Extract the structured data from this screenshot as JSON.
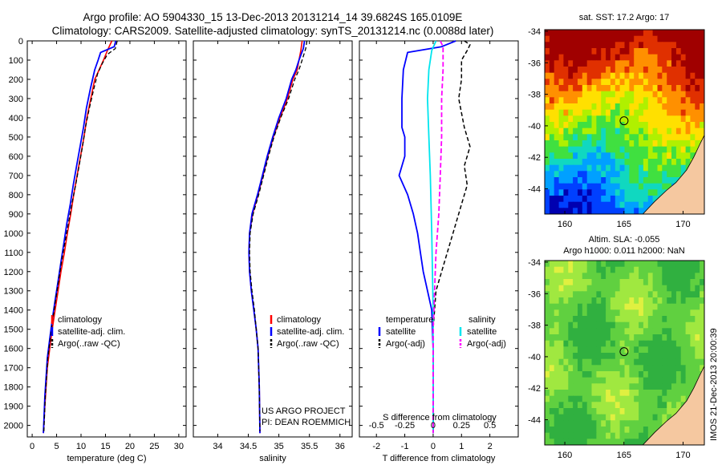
{
  "title": {
    "line1": "Argo profile: AO 5904330_15 13-Dec-2013 20131214_14 39.6824S 165.0109E",
    "line2": "Climatology: CARS2009. Satellite-adjusted climatology: synTS_20131214.nc (0.0088d later)"
  },
  "depth_ticks": [
    "0",
    "100",
    "200",
    "300",
    "400",
    "500",
    "600",
    "700",
    "800",
    "900",
    "1000",
    "1100",
    "1200",
    "1300",
    "1400",
    "1500",
    "1600",
    "1700",
    "1800",
    "1900",
    "2000"
  ],
  "chart_data": [
    {
      "type": "line",
      "id": "temperature",
      "xlabel": "temperature (deg C)",
      "xlim": [
        -1,
        31.5
      ],
      "ylim": [
        2060,
        0
      ],
      "xticks": [
        "0",
        "5",
        "10",
        "15",
        "20",
        "25",
        "30"
      ],
      "legend": [
        "climatology",
        "satellite-adj. clim.",
        "Argo(..raw -QC)"
      ],
      "series": [
        {
          "name": "climatology",
          "color": "#ff0000",
          "dash": "",
          "width": 1.6,
          "x": [
            16.3,
            15.4,
            14.6,
            13.7,
            12.8,
            12.0,
            11.2,
            10.6,
            9.9,
            9.2,
            8.5,
            7.9,
            7.2,
            6.6,
            5.9,
            5.3,
            4.7,
            4.1,
            3.6,
            3.1,
            2.6,
            2.3
          ],
          "y": [
            0,
            50,
            100,
            150,
            200,
            300,
            400,
            500,
            600,
            700,
            800,
            900,
            1000,
            1100,
            1200,
            1300,
            1400,
            1500,
            1600,
            1700,
            1900,
            2040
          ]
        },
        {
          "name": "satellite-adj. clim.",
          "color": "#0000ff",
          "dash": "",
          "width": 1.8,
          "x": [
            17.1,
            16.8,
            14.0,
            13.5,
            12.8,
            11.9,
            11.1,
            10.5,
            9.8,
            9.1,
            8.4,
            7.8,
            7.1,
            6.5,
            5.9,
            5.3,
            4.7,
            4.1,
            3.6,
            3.1,
            2.6,
            2.3
          ],
          "y": [
            0,
            30,
            60,
            100,
            150,
            250,
            350,
            450,
            550,
            650,
            750,
            850,
            950,
            1050,
            1150,
            1250,
            1350,
            1450,
            1550,
            1650,
            1850,
            2040
          ]
        },
        {
          "name": "Argo(..raw -QC)",
          "color": "#000000",
          "dash": "5,3",
          "width": 1.3,
          "x": [
            17.4,
            17.0,
            15.4,
            14.3,
            13.4,
            12.6,
            11.7,
            10.9,
            10.3,
            9.6,
            8.9,
            8.1,
            7.4,
            6.7,
            6.0,
            5.4,
            4.8,
            4.2,
            3.7,
            3.2,
            2.7,
            2.4
          ],
          "y": [
            0,
            40,
            70,
            120,
            170,
            250,
            350,
            450,
            550,
            650,
            750,
            850,
            950,
            1050,
            1150,
            1250,
            1350,
            1450,
            1550,
            1650,
            1850,
            2030
          ]
        }
      ]
    },
    {
      "type": "line",
      "id": "salinity",
      "xlabel": "salinity",
      "xlim": [
        33.6,
        36.2
      ],
      "ylim": [
        2060,
        0
      ],
      "xticks": [
        "34",
        "34.5",
        "35",
        "35.5",
        "36"
      ],
      "legend": [
        "climatology",
        "satellite-adj. clim.",
        "Argo(..raw -QC)"
      ],
      "annotation": [
        "US ARGO PROJECT",
        "PI: DEAN ROEMMICH"
      ],
      "series": [
        {
          "name": "climatology",
          "color": "#ff0000",
          "dash": "",
          "width": 1.6,
          "x": [
            35.38,
            35.36,
            35.33,
            35.3,
            35.23,
            35.14,
            35.02,
            34.91,
            34.82,
            34.74,
            34.66,
            34.57,
            34.52,
            34.51,
            34.52,
            34.55,
            34.59,
            34.63,
            34.66,
            34.68,
            34.69
          ],
          "y": [
            0,
            50,
            100,
            150,
            200,
            300,
            400,
            500,
            600,
            700,
            800,
            900,
            1000,
            1100,
            1200,
            1300,
            1400,
            1500,
            1600,
            1800,
            2040
          ]
        },
        {
          "name": "satellite-adj. clim.",
          "color": "#0000ff",
          "dash": "",
          "width": 1.8,
          "x": [
            35.42,
            35.4,
            35.33,
            35.28,
            35.21,
            35.12,
            35.0,
            34.9,
            34.81,
            34.73,
            34.65,
            34.56,
            34.52,
            34.51,
            34.52,
            34.55,
            34.59,
            34.63,
            34.66,
            34.68,
            34.69
          ],
          "y": [
            0,
            40,
            100,
            150,
            200,
            300,
            400,
            500,
            600,
            700,
            800,
            900,
            1000,
            1100,
            1200,
            1300,
            1400,
            1500,
            1600,
            1800,
            2040
          ]
        },
        {
          "name": "Argo(..raw -QC)",
          "color": "#000000",
          "dash": "5,3",
          "width": 1.3,
          "x": [
            35.46,
            35.44,
            35.38,
            35.33,
            35.26,
            35.16,
            35.03,
            34.92,
            34.83,
            34.75,
            34.67,
            34.58,
            34.53,
            34.52,
            34.53,
            34.56,
            34.6,
            34.63,
            34.66,
            34.68,
            34.69
          ],
          "y": [
            0,
            40,
            100,
            150,
            200,
            300,
            400,
            500,
            600,
            700,
            800,
            900,
            1000,
            1100,
            1200,
            1300,
            1400,
            1500,
            1600,
            1800,
            2030
          ]
        }
      ]
    },
    {
      "type": "line",
      "id": "difference",
      "xlabel": "T difference from climatology",
      "xlabel_top": "S difference from climatology",
      "xlim": [
        -2.6,
        3.0
      ],
      "ylim": [
        2060,
        0
      ],
      "xticks": [
        "-2",
        "-1",
        "0",
        "1",
        "2"
      ],
      "xticks_top": [
        "-0.5",
        "-0.25",
        "0",
        "0.25",
        "0.5"
      ],
      "legend_titles": [
        "temperature",
        "salinity"
      ],
      "legend_temperature": [
        "satellite",
        "Argo(-adj)"
      ],
      "legend_salinity": [
        "satellite",
        "Argo(-adj)"
      ],
      "series": [
        {
          "name": "T satellite",
          "color": "#0000ff",
          "dash": "",
          "width": 1.8,
          "x": [
            0.8,
            0.3,
            -0.9,
            -1.05,
            -1.1,
            -1.1,
            -1.0,
            -1.0,
            -1.2,
            -0.9,
            -0.7,
            -0.55,
            -0.45,
            -0.35,
            -0.2,
            -0.05,
            0.0,
            0.0,
            0.0
          ],
          "y": [
            0,
            30,
            60,
            150,
            300,
            450,
            500,
            600,
            700,
            800,
            900,
            1000,
            1100,
            1200,
            1300,
            1400,
            1600,
            1800,
            2040
          ]
        },
        {
          "name": "T Argo(-adj)",
          "color": "#000000",
          "dash": "5,3",
          "width": 1.5,
          "x": [
            1.1,
            1.3,
            1.2,
            1.0,
            1.0,
            0.9,
            1.1,
            1.3,
            1.1,
            1.2,
            1.0,
            0.7,
            0.5,
            0.3,
            0.1,
            0.05,
            0.0,
            0.0,
            0.0,
            0.0
          ],
          "y": [
            0,
            20,
            50,
            100,
            200,
            300,
            450,
            550,
            650,
            750,
            850,
            1000,
            1100,
            1200,
            1300,
            1400,
            1500,
            1700,
            1900,
            2030
          ]
        },
        {
          "name": "S satellite",
          "color": "#00e5ee",
          "dash": "",
          "width": 1.8,
          "x": [
            0.1,
            -0.05,
            -0.15,
            -0.2,
            -0.15,
            -0.1,
            -0.05,
            0.0,
            0.0,
            0.0
          ],
          "y": [
            0,
            50,
            150,
            300,
            500,
            700,
            1000,
            1400,
            1800,
            2040
          ]
        },
        {
          "name": "S Argo(-adj)",
          "color": "#ff00ff",
          "dash": "6,3",
          "width": 1.8,
          "x": [
            0.25,
            0.35,
            0.35,
            0.3,
            0.3,
            0.25,
            0.2,
            0.1,
            0.05,
            0.0,
            0.0
          ],
          "y": [
            0,
            30,
            150,
            300,
            500,
            700,
            900,
            1100,
            1300,
            1500,
            2040
          ]
        }
      ]
    },
    {
      "type": "heatmap",
      "id": "sst-map",
      "title": "sat. SST: 17.2 Argo: 17",
      "xlim": [
        158.3,
        171.8
      ],
      "ylim": [
        -45.6,
        -33.9
      ],
      "xticks": [
        "160",
        "165",
        "170"
      ],
      "yticks": [
        "-34",
        "-36",
        "-38",
        "-40",
        "-42",
        "-44"
      ],
      "marker": {
        "lon": 165.01,
        "lat": -39.68
      },
      "colors": [
        "#0000b0",
        "#0040ff",
        "#00a0ff",
        "#10d8c0",
        "#40e040",
        "#b0f000",
        "#ffe000",
        "#ff9000",
        "#e03000",
        "#a00000"
      ],
      "land_color": "#f5c8a0"
    },
    {
      "type": "heatmap",
      "id": "sla-map",
      "title": "Altim. SLA: -0.055",
      "subtitle": "Argo h1000: 0.011 h2000: NaN",
      "xlim": [
        158.3,
        171.8
      ],
      "ylim": [
        -45.6,
        -33.9
      ],
      "xticks": [
        "160",
        "165",
        "170"
      ],
      "yticks": [
        "-34",
        "-36",
        "-38",
        "-40",
        "-42",
        "-44"
      ],
      "marker": {
        "lon": 165.01,
        "lat": -39.68
      },
      "colors": [
        "#30b040",
        "#60d040",
        "#a0e840",
        "#e0f040"
      ],
      "land_color": "#f5c8a0"
    }
  ],
  "watermark": "IMOS 21-Dec-2013 20:00:39"
}
